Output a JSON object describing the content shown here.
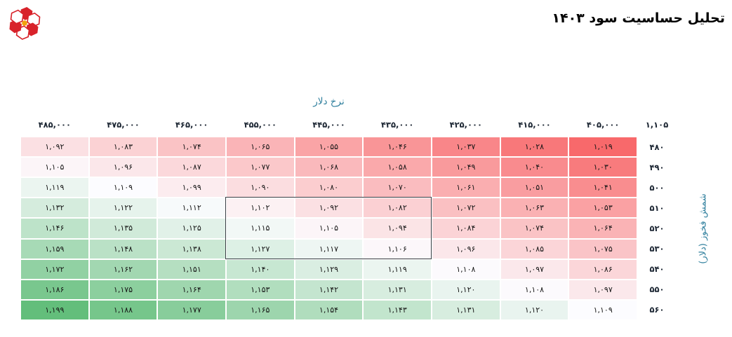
{
  "header": {
    "title": "تحلیل حساسیت سود ۱۴۰۳",
    "logo": {
      "icon": "pinwheel-flower-logo",
      "petal_color": "#d8222a",
      "center_color": "#f2a20d"
    }
  },
  "chart": {
    "x_axis_title": "نرخ دلار",
    "y_axis_title": "شمش فخوز (دلار)",
    "corner_base_value": "۱,۱۰۵",
    "columns_fa": [
      "۴۸۵,۰۰۰",
      "۴۷۵,۰۰۰",
      "۴۶۵,۰۰۰",
      "۴۵۵,۰۰۰",
      "۴۴۵,۰۰۰",
      "۴۳۵,۰۰۰",
      "۴۲۵,۰۰۰",
      "۴۱۵,۰۰۰",
      "۴۰۵,۰۰۰"
    ],
    "rows_fa": [
      "۴۸۰",
      "۴۹۰",
      "۵۰۰",
      "۵۱۰",
      "۵۲۰",
      "۵۳۰",
      "۵۴۰",
      "۵۵۰",
      "۵۶۰"
    ],
    "axis_title_color": "#2f7f9d",
    "header_text_color": "#1c2633"
  },
  "chart_data": {
    "type": "heatmap",
    "title": "تحلیل حساسیت سود ۱۴۰۳",
    "x_label": "نرخ دلار",
    "y_label": "شمش فخوز (دلار)",
    "x_columns_ltr": [
      485000,
      475000,
      465000,
      455000,
      445000,
      435000,
      425000,
      415000,
      405000
    ],
    "y_rows": [
      480,
      490,
      500,
      510,
      520,
      530,
      540,
      550,
      560
    ],
    "values": [
      [
        1092,
        1083,
        1074,
        1065,
        1055,
        1046,
        1037,
        1028,
        1019
      ],
      [
        1105,
        1096,
        1087,
        1077,
        1068,
        1058,
        1049,
        1040,
        1030
      ],
      [
        1119,
        1109,
        1099,
        1090,
        1080,
        1070,
        1061,
        1051,
        1041
      ],
      [
        1132,
        1122,
        1112,
        1102,
        1092,
        1082,
        1072,
        1063,
        1053
      ],
      [
        1146,
        1135,
        1125,
        1115,
        1105,
        1094,
        1084,
        1074,
        1064
      ],
      [
        1159,
        1148,
        1138,
        1127,
        1117,
        1106,
        1096,
        1085,
        1075
      ],
      [
        1172,
        1162,
        1151,
        1140,
        1129,
        1119,
        1108,
        1097,
        1086
      ],
      [
        1186,
        1175,
        1164,
        1153,
        1142,
        1131,
        1120,
        1108,
        1097
      ],
      [
        1199,
        1188,
        1177,
        1165,
        1154,
        1143,
        1131,
        1120,
        1109
      ]
    ],
    "base_value": 1105,
    "highlight_box": {
      "rows": [
        510,
        520,
        530
      ],
      "columns": [
        455000,
        445000,
        435000
      ]
    },
    "color_scale": {
      "min": 1019,
      "min_color": "#F8696B",
      "mid": 1109,
      "mid_color": "#FCFCFF",
      "max": 1199,
      "max_color": "#63BE7B"
    },
    "legend": "none",
    "grid": "white 2px gaps between cells"
  }
}
